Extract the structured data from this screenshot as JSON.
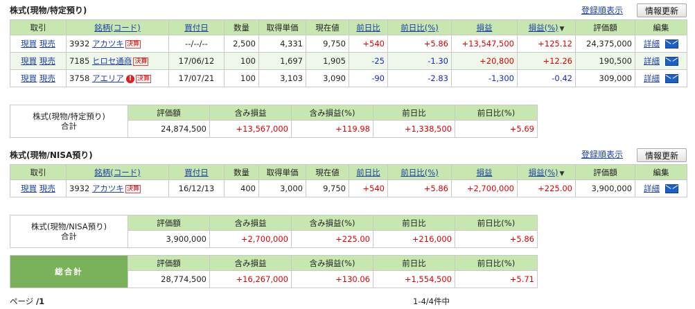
{
  "common": {
    "sort_label": "登録順表示",
    "refresh_label": "情報更新",
    "trade_buy": "現買",
    "trade_sell": "現売",
    "detail_label": "詳細",
    "settle_tag": "決算",
    "alert_mark": "!",
    "sort_desc_mark": "▼"
  },
  "headers": {
    "trade": "取引",
    "name_code": "銘柄(コード)",
    "buy_date": "買付日",
    "qty": "数量",
    "avg_price": "取得単価",
    "cur_price": "現在値",
    "diff": "前日比",
    "diff_pct": "前日比(%)",
    "pl": "損益",
    "pl_pct": "損益(%)",
    "value": "評価額",
    "edit": "編集"
  },
  "sum_headers": {
    "value": "評価額",
    "gain": "含み損益",
    "gain_pct": "含み損益(%)",
    "diff": "前日比",
    "diff_pct": "前日比(%)"
  },
  "section1": {
    "title": "株式(現物/特定預り)",
    "rows": [
      {
        "code": "3932",
        "name": "アカツキ",
        "settle": true,
        "alert": false,
        "date": "--/--/--",
        "qty": "2,500",
        "avg": "4,331",
        "cur": "9,750",
        "diff": "+540",
        "diff_pct": "+5.86",
        "pl": "+13,547,500",
        "pl_pct": "+125.12",
        "value": "24,375,000"
      },
      {
        "code": "7185",
        "name": "ヒロセ通商",
        "settle": true,
        "alert": false,
        "date": "17/06/12",
        "qty": "100",
        "avg": "1,697",
        "cur": "1,905",
        "diff": "-25",
        "diff_pct": "-1.30",
        "pl": "+20,800",
        "pl_pct": "+12.26",
        "value": "190,500"
      },
      {
        "code": "3758",
        "name": "アエリア",
        "settle": true,
        "alert": true,
        "date": "17/07/21",
        "qty": "100",
        "avg": "3,103",
        "cur": "3,090",
        "diff": "-90",
        "diff_pct": "-2.83",
        "pl": "-1,300",
        "pl_pct": "-0.42",
        "value": "309,000"
      }
    ],
    "summary": {
      "label1": "株式(現物/特定預り)",
      "label2": "合計",
      "value": "24,874,500",
      "gain": "+13,567,000",
      "gain_pct": "+119.98",
      "diff": "+1,338,500",
      "diff_pct": "+5.69"
    }
  },
  "section2": {
    "title": "株式(現物/NISA預り)",
    "rows": [
      {
        "code": "3932",
        "name": "アカツキ",
        "settle": true,
        "alert": false,
        "date": "16/12/13",
        "qty": "400",
        "avg": "3,000",
        "cur": "9,750",
        "diff": "+540",
        "diff_pct": "+5.86",
        "pl": "+2,700,000",
        "pl_pct": "+225.00",
        "value": "3,900,000"
      }
    ],
    "summary": {
      "label1": "株式(現物/NISA預り)",
      "label2": "合計",
      "value": "3,900,000",
      "gain": "+2,700,000",
      "gain_pct": "+225.00",
      "diff": "+216,000",
      "diff_pct": "+5.86"
    }
  },
  "grand_total": {
    "label": "総合計",
    "value": "28,774,500",
    "gain": "+16,267,000",
    "gain_pct": "+130.06",
    "diff": "+1,554,500",
    "diff_pct": "+5.71"
  },
  "footer": {
    "page_label": "ページ",
    "page_value": "/1",
    "count": "1-4/4件中"
  }
}
